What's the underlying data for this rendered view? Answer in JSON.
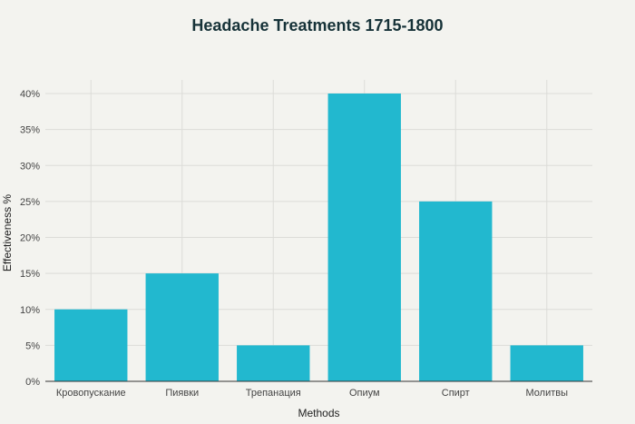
{
  "chart_data": {
    "type": "bar",
    "title": "Headache Treatments 1715-1800",
    "xlabel": "Methods",
    "ylabel": "Effectiveness %",
    "categories": [
      "Кровопускание",
      "Пиявки",
      "Трепанация",
      "Опиум",
      "Спирт",
      "Молитвы"
    ],
    "values": [
      10,
      15,
      5,
      40,
      25,
      5
    ],
    "ylim": [
      0,
      40
    ],
    "yticks": [
      0,
      5,
      10,
      15,
      20,
      25,
      30,
      35,
      40
    ],
    "ytick_suffix": "%",
    "grid": true,
    "bar_color": "#22b8cf",
    "background_color": "#f3f3ef"
  }
}
